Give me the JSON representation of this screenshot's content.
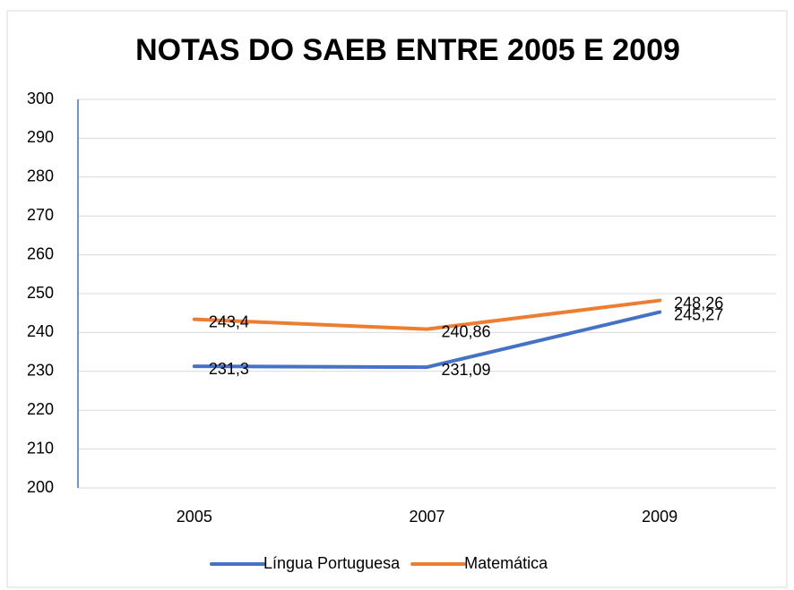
{
  "chart_data": {
    "type": "line",
    "title": "NOTAS DO SAEB ENTRE 2005 E 2009",
    "categories": [
      "2005",
      "2007",
      "2009"
    ],
    "series": [
      {
        "name": "Língua Portuguesa",
        "color": "#4472c4",
        "values": [
          231.3,
          231.09,
          245.27
        ],
        "value_labels": [
          "231,3",
          "231,09",
          "245,27"
        ]
      },
      {
        "name": "Matemática",
        "color": "#ed7d31",
        "values": [
          243.4,
          240.86,
          248.26
        ],
        "value_labels": [
          "243,4",
          "240,86",
          "248,26"
        ]
      }
    ],
    "ylim": [
      200,
      300
    ],
    "yticks": [
      200,
      210,
      220,
      230,
      240,
      250,
      260,
      270,
      280,
      290,
      300
    ],
    "grid": true,
    "legend": "bottom"
  }
}
